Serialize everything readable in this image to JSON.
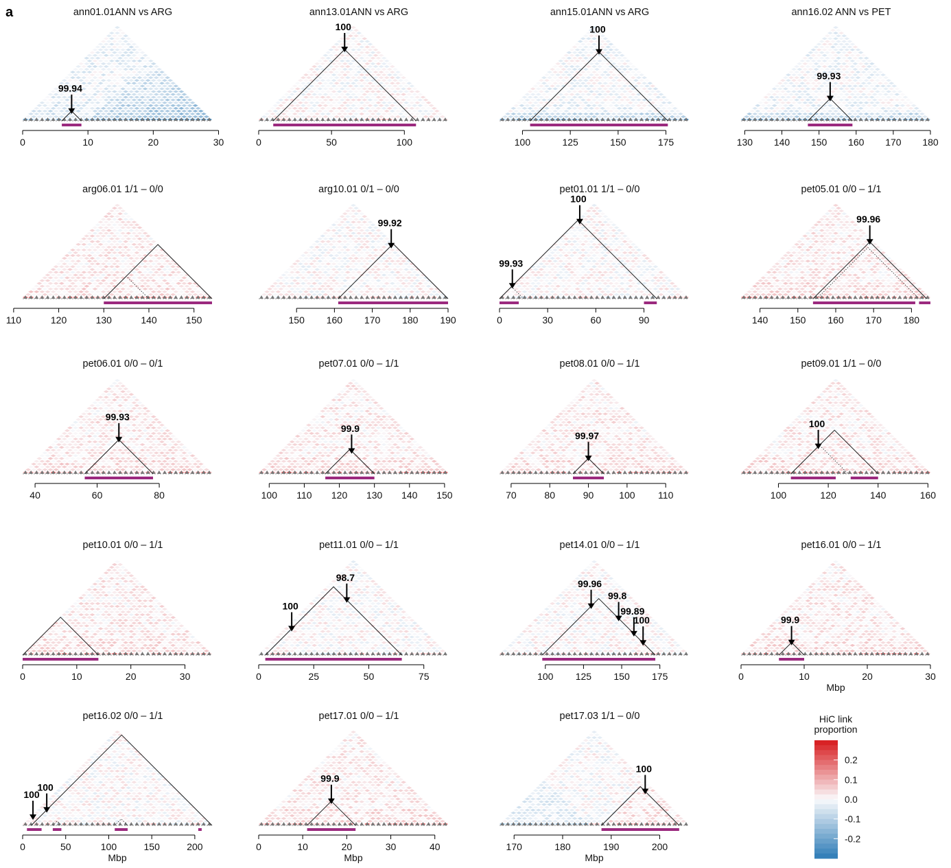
{
  "figure_label": "a",
  "colors": {
    "positive": "#d7191c",
    "negative": "#2c7bb6",
    "region_bar": "#9b2a7e",
    "arrow": "#000000"
  },
  "legend": {
    "title_line1": "HiC link",
    "title_line2": "proportion",
    "ticks": [
      {
        "label": "0.2",
        "value": 0.2
      },
      {
        "label": "0.1",
        "value": 0.1
      },
      {
        "label": "0.0",
        "value": 0.0
      },
      {
        "label": "-0.1",
        "value": -0.1
      },
      {
        "label": "-0.2",
        "value": -0.2
      }
    ],
    "range": [
      -0.3,
      0.3
    ]
  },
  "chart_data": [
    {
      "type": "heatmap",
      "title": "ann01.01ANN vs ARG",
      "xlabel": "",
      "xlim": [
        0,
        29
      ],
      "xticks": [
        0,
        10,
        20,
        30
      ],
      "regions": [
        [
          6,
          9
        ]
      ],
      "triangles": [
        [
          6,
          9,
          "solid"
        ]
      ],
      "annotations": [
        {
          "label": "99.94",
          "x": 7.5
        }
      ],
      "tone": "blue"
    },
    {
      "type": "heatmap",
      "title": "ann13.01ANN vs ARG",
      "xlabel": "",
      "xlim": [
        0,
        130
      ],
      "xticks": [
        0,
        50,
        100
      ],
      "regions": [
        [
          10,
          108
        ]
      ],
      "triangles": [
        [
          10,
          108,
          "solid"
        ]
      ],
      "annotations": [
        {
          "label": "100",
          "x": 59
        }
      ],
      "tone": "light"
    },
    {
      "type": "heatmap",
      "title": "ann15.01ANN vs ARG",
      "xlabel": "",
      "xlim": [
        88,
        187
      ],
      "xticks": [
        100,
        125,
        150,
        175
      ],
      "regions": [
        [
          104,
          176
        ]
      ],
      "triangles": [
        [
          104,
          176,
          "solid"
        ]
      ],
      "annotations": [
        {
          "label": "100",
          "x": 140
        }
      ],
      "tone": "blueish"
    },
    {
      "type": "heatmap",
      "title": "ann16.02 ANN vs PET",
      "xlabel": "",
      "xlim": [
        129,
        180
      ],
      "xticks": [
        130,
        140,
        150,
        160,
        170,
        180
      ],
      "regions": [
        [
          147,
          159
        ]
      ],
      "triangles": [
        [
          147,
          159,
          "solid"
        ]
      ],
      "annotations": [
        {
          "label": "99.93",
          "x": 153
        }
      ],
      "tone": "blueish"
    },
    {
      "type": "heatmap",
      "title": "arg06.01 1/1 – 0/0",
      "xlabel": "",
      "xlim": [
        112,
        154
      ],
      "xticks": [
        110,
        120,
        130,
        140,
        150
      ],
      "regions": [
        [
          130,
          155
        ]
      ],
      "triangles": [
        [
          130,
          155,
          "solid"
        ],
        [
          130,
          140,
          "dotted"
        ]
      ],
      "annotations": [],
      "tone": "red"
    },
    {
      "type": "heatmap",
      "title": "arg10.01 0/1 – 0/0",
      "xlabel": "",
      "xlim": [
        140,
        190
      ],
      "xticks": [
        150,
        160,
        170,
        180,
        190
      ],
      "regions": [
        [
          161,
          190
        ]
      ],
      "triangles": [
        [
          161,
          190,
          "solid"
        ]
      ],
      "annotations": [
        {
          "label": "99.92",
          "x": 175
        }
      ],
      "tone": "light"
    },
    {
      "type": "heatmap",
      "title": "pet01.01 1/1 – 0/0",
      "xlabel": "",
      "xlim": [
        0,
        118
      ],
      "xticks": [
        0,
        30,
        60,
        90
      ],
      "regions": [
        [
          0,
          12
        ],
        [
          90,
          98
        ]
      ],
      "triangles": [
        [
          0,
          98,
          "solid"
        ],
        [
          0,
          15,
          "dotted"
        ]
      ],
      "annotations": [
        {
          "label": "100",
          "x": 50
        },
        {
          "label": "99.93",
          "x": 8
        }
      ],
      "tone": "light"
    },
    {
      "type": "heatmap",
      "title": "pet05.01 0/0 – 1/1",
      "xlabel": "",
      "xlim": [
        135,
        185
      ],
      "xticks": [
        140,
        150,
        160,
        170,
        180
      ],
      "regions": [
        [
          154,
          181
        ],
        [
          182,
          185
        ]
      ],
      "triangles": [
        [
          154,
          184,
          "solid"
        ],
        [
          155,
          182,
          "dotted"
        ]
      ],
      "annotations": [
        {
          "label": "99.96",
          "x": 169
        }
      ],
      "tone": "red"
    },
    {
      "type": "heatmap",
      "title": "pet06.01 0/0 – 0/1",
      "xlabel": "",
      "xlim": [
        36,
        97
      ],
      "xticks": [
        40,
        60,
        80
      ],
      "regions": [
        [
          56,
          78
        ]
      ],
      "triangles": [
        [
          56,
          78,
          "solid"
        ]
      ],
      "annotations": [
        {
          "label": "99.93",
          "x": 67
        }
      ],
      "tone": "red"
    },
    {
      "type": "heatmap",
      "title": "pet07.01 0/0 – 1/1",
      "xlabel": "",
      "xlim": [
        97,
        151
      ],
      "xticks": [
        100,
        110,
        120,
        130,
        140,
        150
      ],
      "regions": [
        [
          116,
          130
        ]
      ],
      "triangles": [
        [
          116,
          130,
          "solid"
        ]
      ],
      "annotations": [
        {
          "label": "99.9",
          "x": 123.5
        }
      ],
      "tone": "red"
    },
    {
      "type": "heatmap",
      "title": "pet08.01 0/0 – 1/1",
      "xlabel": "",
      "xlim": [
        67,
        116
      ],
      "xticks": [
        70,
        80,
        90,
        100,
        110
      ],
      "regions": [
        [
          86,
          94
        ]
      ],
      "triangles": [
        [
          86,
          94,
          "solid"
        ]
      ],
      "annotations": [
        {
          "label": "99.97",
          "x": 90
        }
      ],
      "tone": "red"
    },
    {
      "type": "heatmap",
      "title": "pet09.01 1/1 – 0/0",
      "xlabel": "",
      "xlim": [
        85,
        161
      ],
      "xticks": [
        100,
        120,
        140,
        160
      ],
      "regions": [
        [
          105,
          123
        ],
        [
          129,
          140
        ]
      ],
      "triangles": [
        [
          105,
          140,
          "solid"
        ],
        [
          105,
          128,
          "dotted"
        ]
      ],
      "annotations": [
        {
          "label": "100",
          "x": 116
        }
      ],
      "tone": "red"
    },
    {
      "type": "heatmap",
      "title": "pet10.01 0/0 – 1/1",
      "xlabel": "",
      "xlim": [
        0,
        35
      ],
      "xticks": [
        0,
        10,
        20,
        30
      ],
      "regions": [
        [
          0,
          14
        ]
      ],
      "triangles": [
        [
          0,
          14,
          "solid"
        ]
      ],
      "annotations": [],
      "tone": "red"
    },
    {
      "type": "heatmap",
      "title": "pet11.01 0/0 – 1/1",
      "xlabel": "",
      "xlim": [
        0,
        86
      ],
      "xticks": [
        0,
        25,
        50,
        75
      ],
      "regions": [
        [
          3,
          65
        ]
      ],
      "triangles": [
        [
          3,
          65,
          "solid"
        ]
      ],
      "annotations": [
        {
          "label": "98.7",
          "x": 40
        },
        {
          "label": "100",
          "x": 15
        }
      ],
      "tone": "light"
    },
    {
      "type": "heatmap",
      "title": "pet14.01 0/0 – 1/1",
      "xlabel": "",
      "xlim": [
        70,
        194
      ],
      "xticks": [
        100,
        125,
        150,
        175
      ],
      "regions": [
        [
          98,
          172
        ]
      ],
      "triangles": [
        [
          98,
          172,
          "solid"
        ]
      ],
      "annotations": [
        {
          "label": "99.96",
          "x": 130
        },
        {
          "label": "99.8",
          "x": 148
        },
        {
          "label": "99.89",
          "x": 158
        },
        {
          "label": "100",
          "x": 164
        }
      ],
      "tone": "light"
    },
    {
      "type": "heatmap",
      "title": "pet16.01 0/0 – 1/1",
      "xlabel": "Mbp",
      "xlim": [
        0,
        30
      ],
      "xticks": [
        0,
        10,
        20,
        30
      ],
      "regions": [
        [
          6,
          10
        ]
      ],
      "triangles": [
        [
          6,
          10,
          "solid"
        ]
      ],
      "annotations": [
        {
          "label": "99.9",
          "x": 8
        }
      ],
      "tone": "red"
    },
    {
      "type": "heatmap",
      "title": "pet16.02 0/0 – 1/1",
      "xlabel": "Mbp",
      "xlim": [
        0,
        220
      ],
      "xticks": [
        0,
        50,
        100,
        150,
        200
      ],
      "regions": [
        [
          5,
          22
        ],
        [
          35,
          45
        ],
        [
          107,
          122
        ],
        [
          204,
          208
        ]
      ],
      "triangles": [
        [
          10,
          220,
          "solid"
        ],
        [
          35,
          45,
          "dotted"
        ],
        [
          107,
          122,
          "dotted"
        ]
      ],
      "annotations": [
        {
          "label": "100",
          "x": 12
        },
        {
          "label": "100",
          "x": 28
        }
      ],
      "tone": "light"
    },
    {
      "type": "heatmap",
      "title": "pet17.01 0/0 – 1/1",
      "xlabel": "Mbp",
      "xlim": [
        0,
        43
      ],
      "xticks": [
        0,
        10,
        20,
        30,
        40
      ],
      "regions": [
        [
          11,
          22
        ]
      ],
      "triangles": [
        [
          11,
          22,
          "solid"
        ]
      ],
      "annotations": [
        {
          "label": "99.9",
          "x": 16.5
        }
      ],
      "tone": "red"
    },
    {
      "type": "heatmap",
      "title": "pet17.03 1/1 – 0/0",
      "xlabel": "Mbp",
      "xlim": [
        167,
        206
      ],
      "xticks": [
        170,
        180,
        190,
        200
      ],
      "regions": [
        [
          188,
          204
        ]
      ],
      "triangles": [
        [
          188,
          204,
          "solid"
        ]
      ],
      "annotations": [
        {
          "label": "100",
          "x": 197
        }
      ],
      "tone": "mixed"
    }
  ]
}
